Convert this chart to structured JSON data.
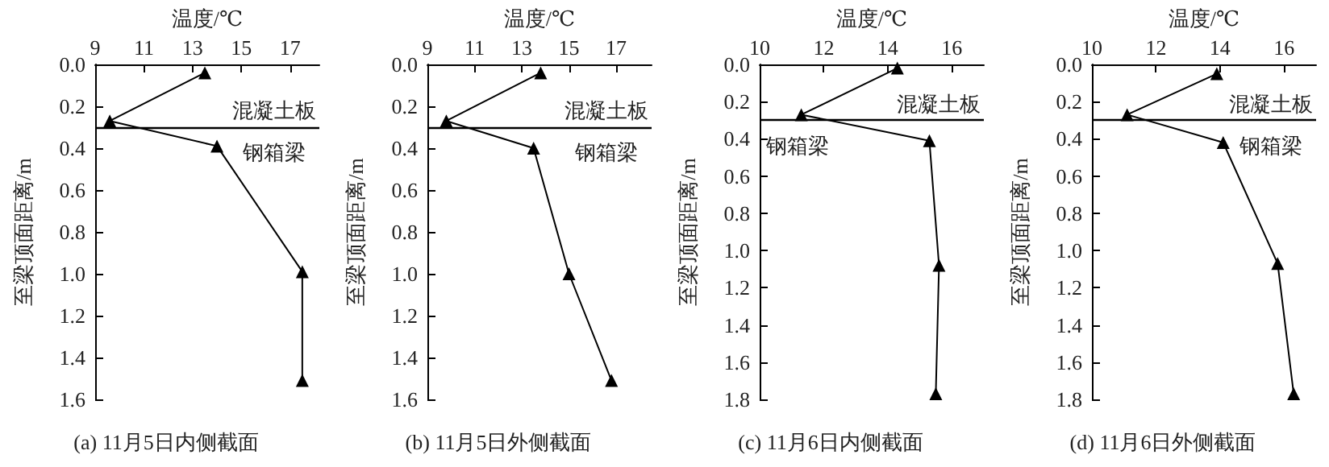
{
  "chart_data": [
    {
      "type": "line",
      "title": "(a) 11月5日内侧截面",
      "xlabel": "温度/℃",
      "ylabel": "至梁顶面距离/m",
      "marker": "triangle",
      "line_style": "solid",
      "grid": false,
      "series": [
        {
          "color": "#000000",
          "x": [
            13.5,
            9.6,
            14,
            17.5,
            17.5
          ],
          "values": [
            0.04,
            0.27,
            0.39,
            0.99,
            1.51
          ]
        }
      ],
      "xlim": [
        9,
        18.2
      ],
      "xticks": [
        9,
        11,
        13,
        15,
        17
      ],
      "ylim": [
        1.6,
        0
      ],
      "yticks": [
        {
          "value": 0,
          "label": "0.0"
        },
        {
          "value": 0.2,
          "label": "0.2"
        },
        {
          "value": 0.4,
          "label": "0.4"
        },
        {
          "value": 0.6,
          "label": "0.6"
        },
        {
          "value": 0.8,
          "label": "0.8"
        },
        {
          "value": 1,
          "label": "1.0"
        },
        {
          "value": 1.2,
          "label": "1.2"
        },
        {
          "value": 1.4,
          "label": "1.4"
        },
        {
          "value": 1.6,
          "label": "1.6"
        }
      ],
      "ref_lines": [
        {
          "axis": "y",
          "value": 0.3,
          "color": "#000000"
        }
      ],
      "annotations": [
        "混凝土板",
        "钢箱梁"
      ]
    },
    {
      "type": "line",
      "title": "(b) 11月5日外侧截面",
      "xlabel": "温度/℃",
      "ylabel": "至梁顶面距离/m",
      "marker": "triangle",
      "line_style": "solid",
      "grid": false,
      "series": [
        {
          "color": "#000000",
          "x": [
            13.8,
            9.8,
            13.5,
            15,
            16.8
          ],
          "values": [
            0.04,
            0.27,
            0.4,
            1.0,
            1.51
          ]
        }
      ],
      "xlim": [
        9,
        18.5
      ],
      "xticks": [
        9,
        11,
        13,
        15,
        17
      ],
      "ylim": [
        1.6,
        0
      ],
      "yticks": [
        {
          "value": 0,
          "label": "0.0"
        },
        {
          "value": 0.2,
          "label": "0.2"
        },
        {
          "value": 0.4,
          "label": "0.4"
        },
        {
          "value": 0.6,
          "label": "0.6"
        },
        {
          "value": 0.8,
          "label": "0.8"
        },
        {
          "value": 1,
          "label": "1.0"
        },
        {
          "value": 1.2,
          "label": "1.2"
        },
        {
          "value": 1.4,
          "label": "1.4"
        },
        {
          "value": 1.6,
          "label": "1.6"
        }
      ],
      "ref_lines": [
        {
          "axis": "y",
          "value": 0.3,
          "color": "#000000"
        }
      ],
      "annotations": [
        "混凝土板",
        "钢箱梁"
      ]
    },
    {
      "type": "line",
      "title": "(c) 11月6日内侧截面",
      "xlabel": "温度/℃",
      "ylabel": "至梁顶面距离/m",
      "marker": "triangle",
      "line_style": "solid",
      "grid": false,
      "series": [
        {
          "color": "#000000",
          "x": [
            14.3,
            11.3,
            15.3,
            15.6,
            15.5
          ],
          "values": [
            0.02,
            0.27,
            0.41,
            1.08,
            1.77
          ]
        }
      ],
      "xlim": [
        10,
        17
      ],
      "xticks": [
        10,
        12,
        14,
        16
      ],
      "ylim": [
        1.8,
        0
      ],
      "yticks": [
        {
          "value": 0,
          "label": "0.0"
        },
        {
          "value": 0.2,
          "label": "0.2"
        },
        {
          "value": 0.4,
          "label": "0.4"
        },
        {
          "value": 0.6,
          "label": "0.6"
        },
        {
          "value": 0.8,
          "label": "0.8"
        },
        {
          "value": 1,
          "label": "1.0"
        },
        {
          "value": 1.2,
          "label": "1.2"
        },
        {
          "value": 1.4,
          "label": "1.4"
        },
        {
          "value": 1.6,
          "label": "1.6"
        },
        {
          "value": 1.8,
          "label": "1.8"
        }
      ],
      "ref_lines": [
        {
          "axis": "y",
          "value": 0.3,
          "color": "#000000"
        }
      ],
      "annotations": [
        "混凝土板",
        "钢箱梁"
      ]
    },
    {
      "type": "line",
      "title": "(d) 11月6日外侧截面",
      "xlabel": "温度/℃",
      "ylabel": "至梁顶面距离/m",
      "marker": "triangle",
      "line_style": "solid",
      "grid": false,
      "series": [
        {
          "color": "#000000",
          "x": [
            13.9,
            11.1,
            14.1,
            15.8,
            16.3
          ],
          "values": [
            0.05,
            0.27,
            0.42,
            1.07,
            1.77
          ]
        }
      ],
      "xlim": [
        10,
        17
      ],
      "xticks": [
        10,
        12,
        14,
        16
      ],
      "ylim": [
        1.8,
        0
      ],
      "yticks": [
        {
          "value": 0,
          "label": "0.0"
        },
        {
          "value": 0.2,
          "label": "0.2"
        },
        {
          "value": 0.4,
          "label": "0.4"
        },
        {
          "value": 0.6,
          "label": "0.6"
        },
        {
          "value": 0.8,
          "label": "0.8"
        },
        {
          "value": 1,
          "label": "1.0"
        },
        {
          "value": 1.2,
          "label": "1.2"
        },
        {
          "value": 1.4,
          "label": "1.4"
        },
        {
          "value": 1.6,
          "label": "1.6"
        },
        {
          "value": 1.8,
          "label": "1.8"
        }
      ],
      "ref_lines": [
        {
          "axis": "y",
          "value": 0.3,
          "color": "#000000"
        }
      ],
      "annotations": [
        "混凝土板",
        "钢箱梁"
      ]
    }
  ]
}
